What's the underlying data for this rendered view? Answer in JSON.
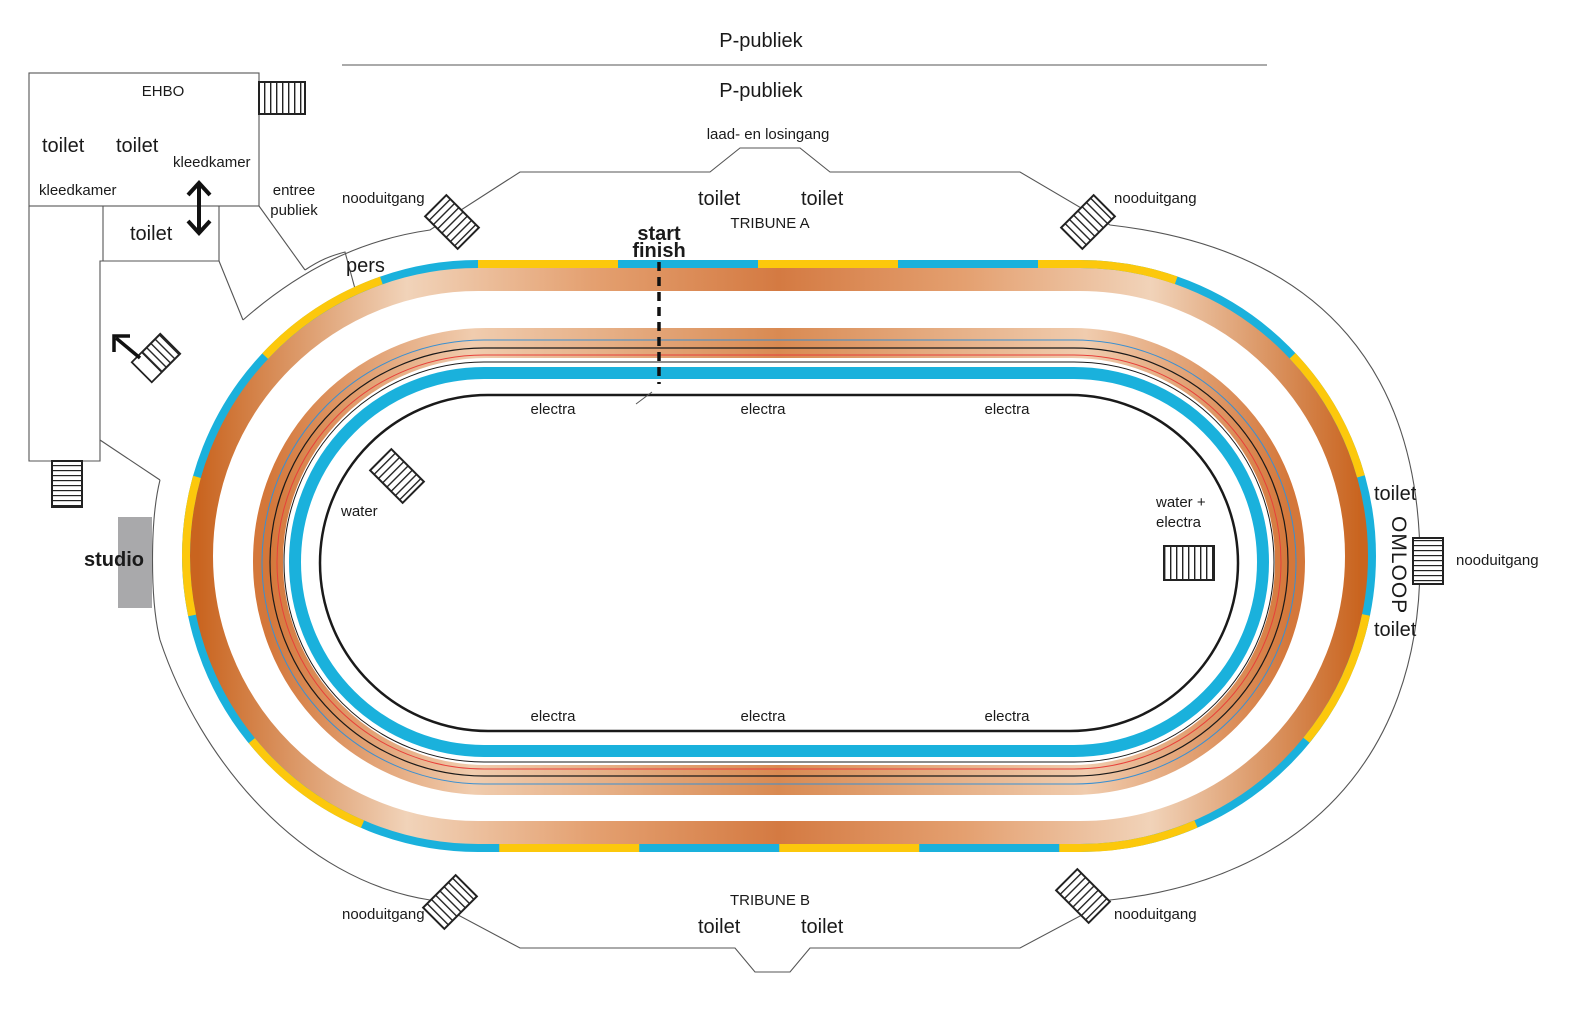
{
  "labels": {
    "parking_top": "P-publiek",
    "parking_inner": "P-publiek",
    "ehbo": "EHBO",
    "toilet_ehbo_left": "toilet",
    "toilet_ehbo_right": "toilet",
    "kleedkamer_right": "kleedkamer",
    "kleedkamer_left": "kleedkamer",
    "toilet_small_room": "toilet",
    "entree_line1": "entree",
    "entree_line2": "publiek",
    "pers": "pers",
    "studio": "studio",
    "laad_losingang": "laad- en losingang",
    "tribune_a": "TRIBUNE A",
    "tribune_b": "TRIBUNE B",
    "toilet_tribune_a_left": "toilet",
    "toilet_tribune_a_right": "toilet",
    "toilet_tribune_b_left": "toilet",
    "toilet_tribune_b_right": "toilet",
    "start": "start",
    "finish": "finish",
    "nooduitgang_top_left": "nooduitgang",
    "nooduitgang_top_right": "nooduitgang",
    "nooduitgang_bottom_left": "nooduitgang",
    "nooduitgang_bottom_right": "nooduitgang",
    "nooduitgang_right": "nooduitgang",
    "toilet_omloop_top": "toilet",
    "toilet_omloop_bottom": "toilet",
    "omloop": "OMLOOP",
    "electra_top_1": "electra",
    "electra_top_2": "electra",
    "electra_top_3": "electra",
    "electra_bottom_1": "electra",
    "electra_bottom_2": "electra",
    "electra_bottom_3": "electra",
    "water": "water",
    "water_electra_line1": "water +",
    "water_electra_line2": "electra"
  },
  "icons": [
    "staircase-icon",
    "double-arrow-icon",
    "exit-arrow-icon"
  ],
  "colors": {
    "track_copper": "#d4773a",
    "track_light": "#efcdb0",
    "band_blue": "#1ab1dc",
    "band_yellow": "#fcc80c",
    "studio_grey": "#a9a9ab",
    "line_red": "#e8403a",
    "line_blue": "#3a8fd0"
  }
}
